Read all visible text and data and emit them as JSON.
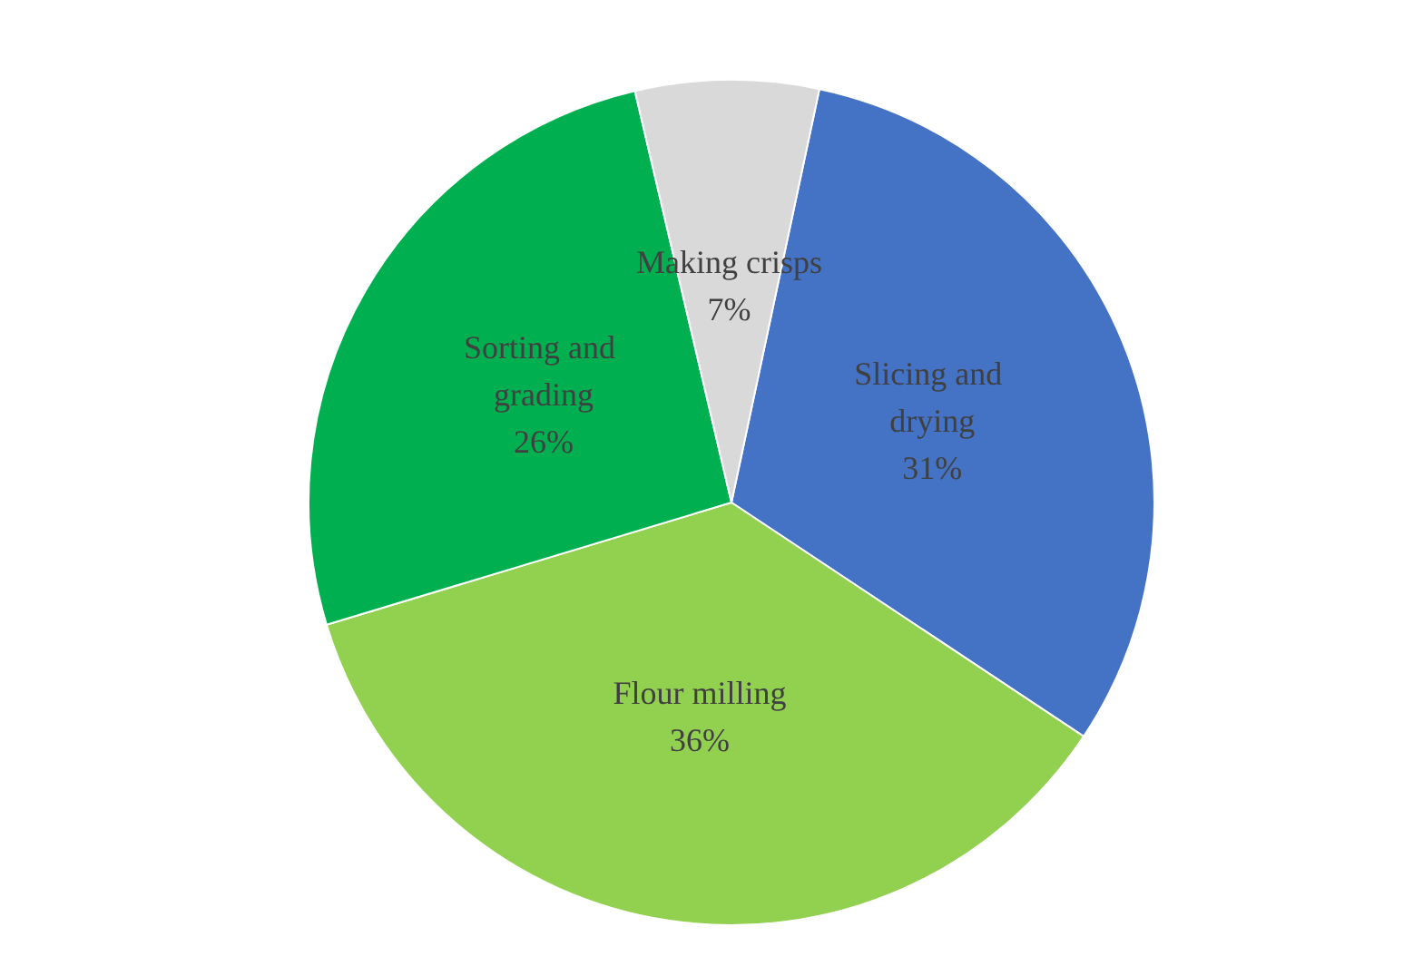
{
  "chart_data": {
    "type": "pie",
    "categories": [
      "Slicing and drying",
      "Flour milling",
      "Sorting and grading",
      "Making crisps"
    ],
    "values": [
      31,
      36,
      26,
      7
    ],
    "colors": [
      "#4472c4",
      "#92d050",
      "#00b050",
      "#d9d9d9"
    ],
    "value_labels": [
      "31%",
      "36%",
      "26%",
      "7%"
    ],
    "legend": false
  }
}
